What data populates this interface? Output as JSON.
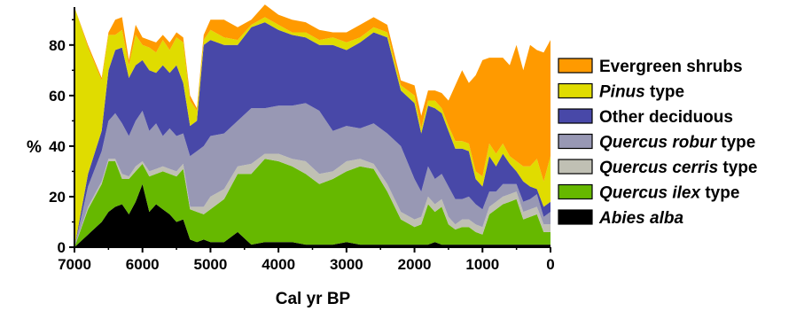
{
  "chart_data": {
    "type": "area",
    "stacked": true,
    "title": "",
    "xlabel": "Cal yr BP",
    "ylabel": "%",
    "xlim": [
      7000,
      0
    ],
    "ylim": [
      0,
      95
    ],
    "x_reversed": true,
    "xticks": [
      "7000",
      "6000",
      "5000",
      "4000",
      "3000",
      "2000",
      "1000",
      "0"
    ],
    "yticks": [
      "0",
      "20",
      "40",
      "60",
      "80"
    ],
    "grid": false,
    "legend_position": "right",
    "x": [
      7000,
      6800,
      6600,
      6500,
      6400,
      6300,
      6200,
      6100,
      6000,
      5900,
      5800,
      5700,
      5600,
      5500,
      5400,
      5300,
      5200,
      5100,
      5000,
      4800,
      4600,
      4400,
      4200,
      4000,
      3800,
      3600,
      3400,
      3200,
      3000,
      2800,
      2600,
      2400,
      2200,
      2000,
      1900,
      1800,
      1700,
      1600,
      1500,
      1400,
      1300,
      1200,
      1100,
      1000,
      900,
      800,
      700,
      600,
      500,
      400,
      300,
      200,
      100,
      0
    ],
    "series": [
      {
        "name": "Abies alba",
        "color": "#000000",
        "values": [
          0,
          5,
          10,
          14,
          16,
          17,
          13,
          18,
          25,
          14,
          17,
          15,
          13,
          10,
          11,
          3,
          2,
          3,
          2,
          2,
          6,
          1,
          2,
          2,
          2,
          1,
          1,
          1,
          2,
          1,
          1,
          1,
          1,
          1,
          1,
          1,
          2,
          1,
          1,
          1,
          1,
          1,
          1,
          1,
          1,
          1,
          1,
          1,
          1,
          1,
          1,
          1,
          1,
          1
        ]
      },
      {
        "name": "Quercus ilex type",
        "color": "#66b800",
        "values": [
          0,
          10,
          15,
          20,
          18,
          10,
          14,
          12,
          8,
          14,
          12,
          15,
          16,
          18,
          20,
          12,
          12,
          10,
          13,
          17,
          23,
          28,
          33,
          32,
          30,
          28,
          24,
          26,
          28,
          31,
          30,
          21,
          10,
          7,
          8,
          16,
          12,
          15,
          8,
          6,
          7,
          7,
          5,
          4,
          12,
          14,
          16,
          17,
          18,
          10,
          11,
          12,
          5,
          5
        ]
      },
      {
        "name": "Quercus cerris type",
        "color": "#c0c0b4",
        "values": [
          0,
          1,
          1,
          1,
          1,
          2,
          1,
          2,
          1,
          2,
          2,
          2,
          2,
          2,
          2,
          1,
          2,
          3,
          5,
          4,
          3,
          4,
          2,
          3,
          3,
          5,
          4,
          3,
          4,
          3,
          2,
          3,
          3,
          3,
          3,
          3,
          3,
          3,
          3,
          2,
          3,
          3,
          3,
          3,
          3,
          3,
          3,
          3,
          3,
          3,
          3,
          3,
          3,
          3
        ]
      },
      {
        "name": "Quercus robur type",
        "color": "#9898b4",
        "values": [
          0,
          8,
          12,
          15,
          18,
          20,
          16,
          18,
          20,
          16,
          18,
          12,
          16,
          14,
          12,
          20,
          22,
          24,
          24,
          22,
          18,
          22,
          18,
          19,
          21,
          23,
          25,
          16,
          14,
          12,
          16,
          20,
          26,
          16,
          10,
          12,
          10,
          10,
          12,
          10,
          8,
          9,
          8,
          7,
          6,
          4,
          5,
          4,
          3,
          4,
          4,
          5,
          3,
          5
        ]
      },
      {
        "name": "Other deciduous",
        "color": "#4848a8",
        "values": [
          0,
          5,
          8,
          20,
          25,
          30,
          23,
          22,
          20,
          24,
          20,
          28,
          22,
          28,
          20,
          12,
          12,
          40,
          38,
          35,
          30,
          32,
          34,
          30,
          28,
          26,
          26,
          34,
          30,
          34,
          36,
          38,
          22,
          30,
          23,
          24,
          28,
          24,
          22,
          20,
          20,
          18,
          10,
          9,
          14,
          10,
          12,
          8,
          5,
          8,
          5,
          2,
          4,
          4
        ]
      },
      {
        "name": "Pinus type",
        "color": "#e0dc00",
        "values": [
          95,
          50,
          20,
          14,
          6,
          7,
          5,
          12,
          6,
          9,
          8,
          10,
          9,
          11,
          16,
          10,
          4,
          2,
          4,
          3,
          2,
          1,
          2,
          2,
          1,
          2,
          2,
          3,
          3,
          2,
          2,
          2,
          2,
          3,
          2,
          2,
          3,
          2,
          2,
          3,
          3,
          3,
          3,
          4,
          5,
          5,
          4,
          3,
          4,
          6,
          8,
          12,
          10,
          18
        ]
      },
      {
        "name": "Evergreen shrubs",
        "color": "#ff9a00",
        "values": [
          0,
          1,
          1,
          1,
          6,
          5,
          2,
          4,
          3,
          3,
          4,
          2,
          3,
          2,
          2,
          2,
          1,
          2,
          4,
          7,
          5,
          2,
          5,
          4,
          5,
          4,
          4,
          2,
          4,
          5,
          4,
          3,
          2,
          4,
          5,
          4,
          4,
          6,
          10,
          22,
          28,
          24,
          38,
          46,
          34,
          38,
          34,
          36,
          46,
          38,
          48,
          43,
          51,
          46
        ]
      }
    ]
  },
  "legend": {
    "items": [
      {
        "plain": "Evergreen shrubs",
        "italic": "",
        "color": "#ff9a00"
      },
      {
        "plain": " type",
        "italic": "Pinus",
        "color": "#e0dc00"
      },
      {
        "plain": "Other deciduous",
        "italic": "",
        "color": "#4848a8"
      },
      {
        "plain": " type",
        "italic": "Quercus robur",
        "color": "#9898b4"
      },
      {
        "plain": " type",
        "italic": "Quercus cerris",
        "color": "#c0c0b4"
      },
      {
        "plain": " type",
        "italic": "Quercus ilex",
        "color": "#66b800"
      },
      {
        "plain": "",
        "italic": "Abies alba",
        "color": "#000000"
      }
    ]
  }
}
